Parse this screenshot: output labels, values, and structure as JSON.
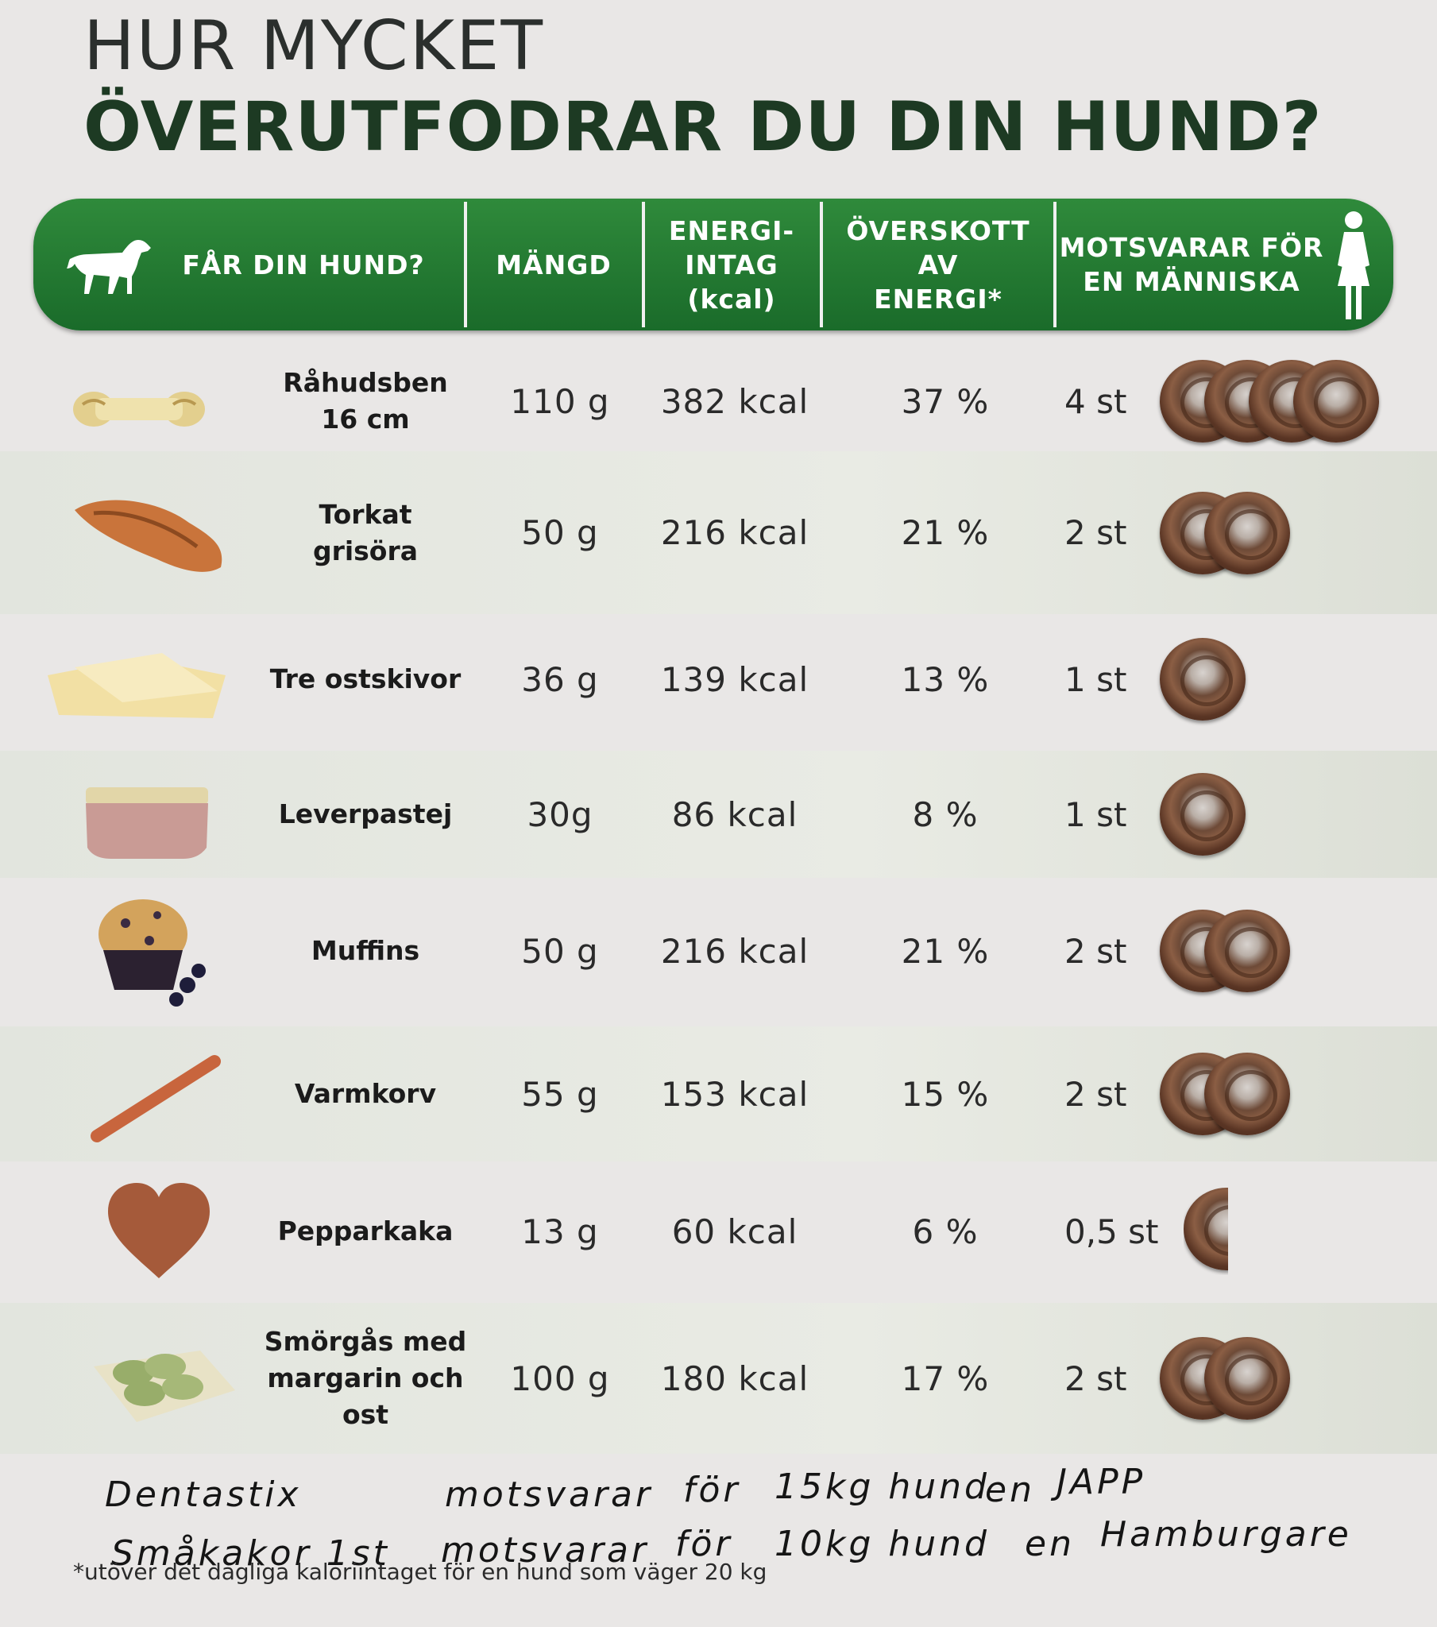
{
  "title": {
    "line1": "HUR MYCKET",
    "line2": "ÖVERUTFODRAR DU DIN HUND?"
  },
  "header": {
    "food": "FÅR DIN HUND?",
    "amount": "MÄNGD",
    "energy": "ENERGI-\nINTAG\n(kcal)",
    "excess": "ÖVERSKOTT AV\nENERGI*",
    "human": "MOTSVARAR FÖR\nEN MÄNNISKA",
    "dog_icon": "dog-icon",
    "woman_icon": "woman-icon"
  },
  "rows": [
    {
      "name": "Råhudsben\n16 cm",
      "amount": "110 g",
      "kcal": "382 kcal",
      "excess": "37 %",
      "count": "4 st",
      "buns": 4,
      "icon": "rawhide-bone-icon"
    },
    {
      "name": "Torkat\ngrisöra",
      "amount": "50 g",
      "kcal": "216 kcal",
      "excess": "21 %",
      "count": "2 st",
      "buns": 2,
      "icon": "pig-ear-icon"
    },
    {
      "name": "Tre ostskivor",
      "amount": "36 g",
      "kcal": "139 kcal",
      "excess": "13 %",
      "count": "1 st",
      "buns": 1,
      "icon": "cheese-slices-icon"
    },
    {
      "name": "Leverpastej",
      "amount": "30g",
      "kcal": "86 kcal",
      "excess": "8 %",
      "count": "1 st",
      "buns": 1,
      "icon": "liver-pate-icon"
    },
    {
      "name": "Muffins",
      "amount": "50 g",
      "kcal": "216 kcal",
      "excess": "21 %",
      "count": "2 st",
      "buns": 2,
      "icon": "muffin-icon"
    },
    {
      "name": "Varmkorv",
      "amount": "55 g",
      "kcal": "153 kcal",
      "excess": "15 %",
      "count": "2 st",
      "buns": 2,
      "icon": "hot-dog-sausage-icon"
    },
    {
      "name": "Pepparkaka",
      "amount": "13 g",
      "kcal": "60 kcal",
      "excess": "6 %",
      "count": "0,5 st",
      "buns": 0.5,
      "icon": "gingerbread-heart-icon"
    },
    {
      "name": "Smörgås med\nmargarin och\nost",
      "amount": "100 g",
      "kcal": "180 kcal",
      "excess": "17 %",
      "count": "2 st",
      "buns": 2,
      "icon": "sandwich-icon"
    }
  ],
  "handwriting": {
    "line1_a": "Dentastix",
    "line1_b": "motsvarar",
    "line1_c": "för",
    "line1_d": "15kg hund",
    "line1_e": "en",
    "line1_f": "JAPP",
    "line2_a": "Småkakor 1st",
    "line2_b": "motsvarar",
    "line2_c": "för",
    "line2_d": "10kg hund",
    "line2_e": "en",
    "line2_f": "Hamburgare"
  },
  "footnote": "*utöver det dagliga kaloriintaget för en hund som väger 20 kg",
  "colors": {
    "header_green": "#1f7a30",
    "title_dark_green": "#1d3a23",
    "bun_brown": "#6d4a37"
  }
}
